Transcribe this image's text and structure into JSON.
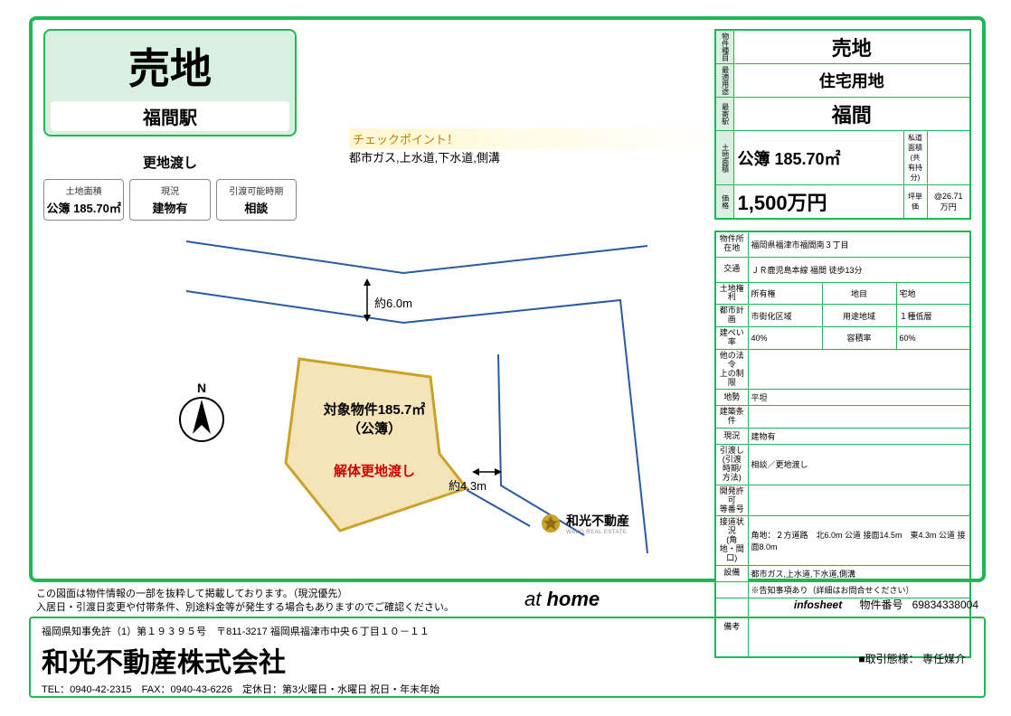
{
  "colors": {
    "brand_green": "#1db954",
    "pale_green": "#d9f0e0",
    "checkpoint_text": "#c08000",
    "lot_fill": "#f5e4b8",
    "lot_stroke": "#c9a227",
    "road_blue": "#2a5aa0",
    "red_text": "#cc0000"
  },
  "title": {
    "main": "売地",
    "station": "福間駅",
    "delivery": "更地渡し"
  },
  "cards": [
    {
      "label": "土地面積",
      "value": "公簿 185.70㎡"
    },
    {
      "label": "現況",
      "value": "建物有"
    },
    {
      "label": "引渡可能時期",
      "value": "相談"
    }
  ],
  "checkpoint": {
    "heading": "チェックポイント！",
    "text": "都市ガス,上水道,下水道,側溝"
  },
  "map": {
    "north_label": "N",
    "dim_top": "約6.0m",
    "dim_right": "約4.3m",
    "lot_label1": "対象物件185.7㎡",
    "lot_label2": "（公簿）",
    "lot_red": "解体更地渡し",
    "brand": "和光不動産",
    "brand_sub": "WAKO REAL ESTATE"
  },
  "summary": {
    "rows": [
      {
        "label": "物件種目",
        "value": "売地"
      },
      {
        "label": "最適用途",
        "value": "住宅用地"
      },
      {
        "label": "最寄駅",
        "value": "福間"
      }
    ],
    "area_label": "土地面積",
    "area_value": "公簿 185.70㎡",
    "area_sub_label": "私道面積\n(共有持分)",
    "area_sub_value": "",
    "price_label": "価格",
    "price_value": "1,500万円",
    "unit_label": "坪単価",
    "unit_value": "@26.71万円"
  },
  "detail": {
    "address_label": "物件所在地",
    "address": "福岡県福津市福間南３丁目",
    "access_label": "交通",
    "access": "ＪＲ鹿児島本線 福間 徒歩13分",
    "rows": [
      [
        [
          "土地権利",
          "所有権"
        ],
        [
          "地目",
          "宅地"
        ]
      ],
      [
        [
          "都市計画",
          "市街化区域"
        ],
        [
          "用途地域",
          "１種低層"
        ]
      ],
      [
        [
          "建ぺい率",
          "40%"
        ],
        [
          "容積率",
          "60%"
        ]
      ],
      [
        [
          "他の法令\n上の制限",
          ""
        ],
        [
          "",
          ""
        ]
      ],
      [
        [
          "地勢",
          "平坦"
        ],
        [
          "",
          ""
        ]
      ],
      [
        [
          "建築条件",
          ""
        ],
        [
          "",
          ""
        ]
      ],
      [
        [
          "現況",
          "建物有"
        ],
        [
          "",
          ""
        ]
      ],
      [
        [
          "引渡し\n(引渡時期/方法)",
          "相談／更地渡し"
        ],
        [
          "",
          ""
        ]
      ],
      [
        [
          "開発許可\n等番号",
          ""
        ],
        [
          "",
          ""
        ]
      ],
      [
        [
          "接道状況\n(角地・間口)",
          "角地：２方道路　北6.0m 公道 接面14.5m　東4.3m 公道 接面8.0m"
        ],
        [
          "",
          ""
        ]
      ],
      [
        [
          "設備",
          "都市ガス,上水道,下水道,側溝"
        ],
        [
          "",
          ""
        ]
      ],
      [
        [
          "",
          "※告知事項あり（詳細はお問合せください）"
        ],
        [
          "",
          ""
        ]
      ]
    ],
    "remarks_label": "備考",
    "remarks": ""
  },
  "disclaimer": {
    "line1": "この図面は物件情報の一部を抜粋して掲載しております。（現況優先）",
    "line2": "入居日・引渡日変更や付帯条件、別途料金等が発生する場合もありますのでご確認ください。"
  },
  "athome": "at home",
  "infosheet": {
    "label": "infosheet",
    "num_label": "物件番号",
    "num": "69834338004"
  },
  "footer": {
    "line1": "福岡県知事免許（1）第１９３９５号　〒811-3217 福岡県福津市中央６丁目１０－１１",
    "company": "和光不動産株式会社",
    "line3": "TEL：0940-42-2315　FAX：0940-43-6226　定休日：第3火曜日・水曜日 祝日・年末年始",
    "transaction": "■取引態様： 専任媒介"
  }
}
